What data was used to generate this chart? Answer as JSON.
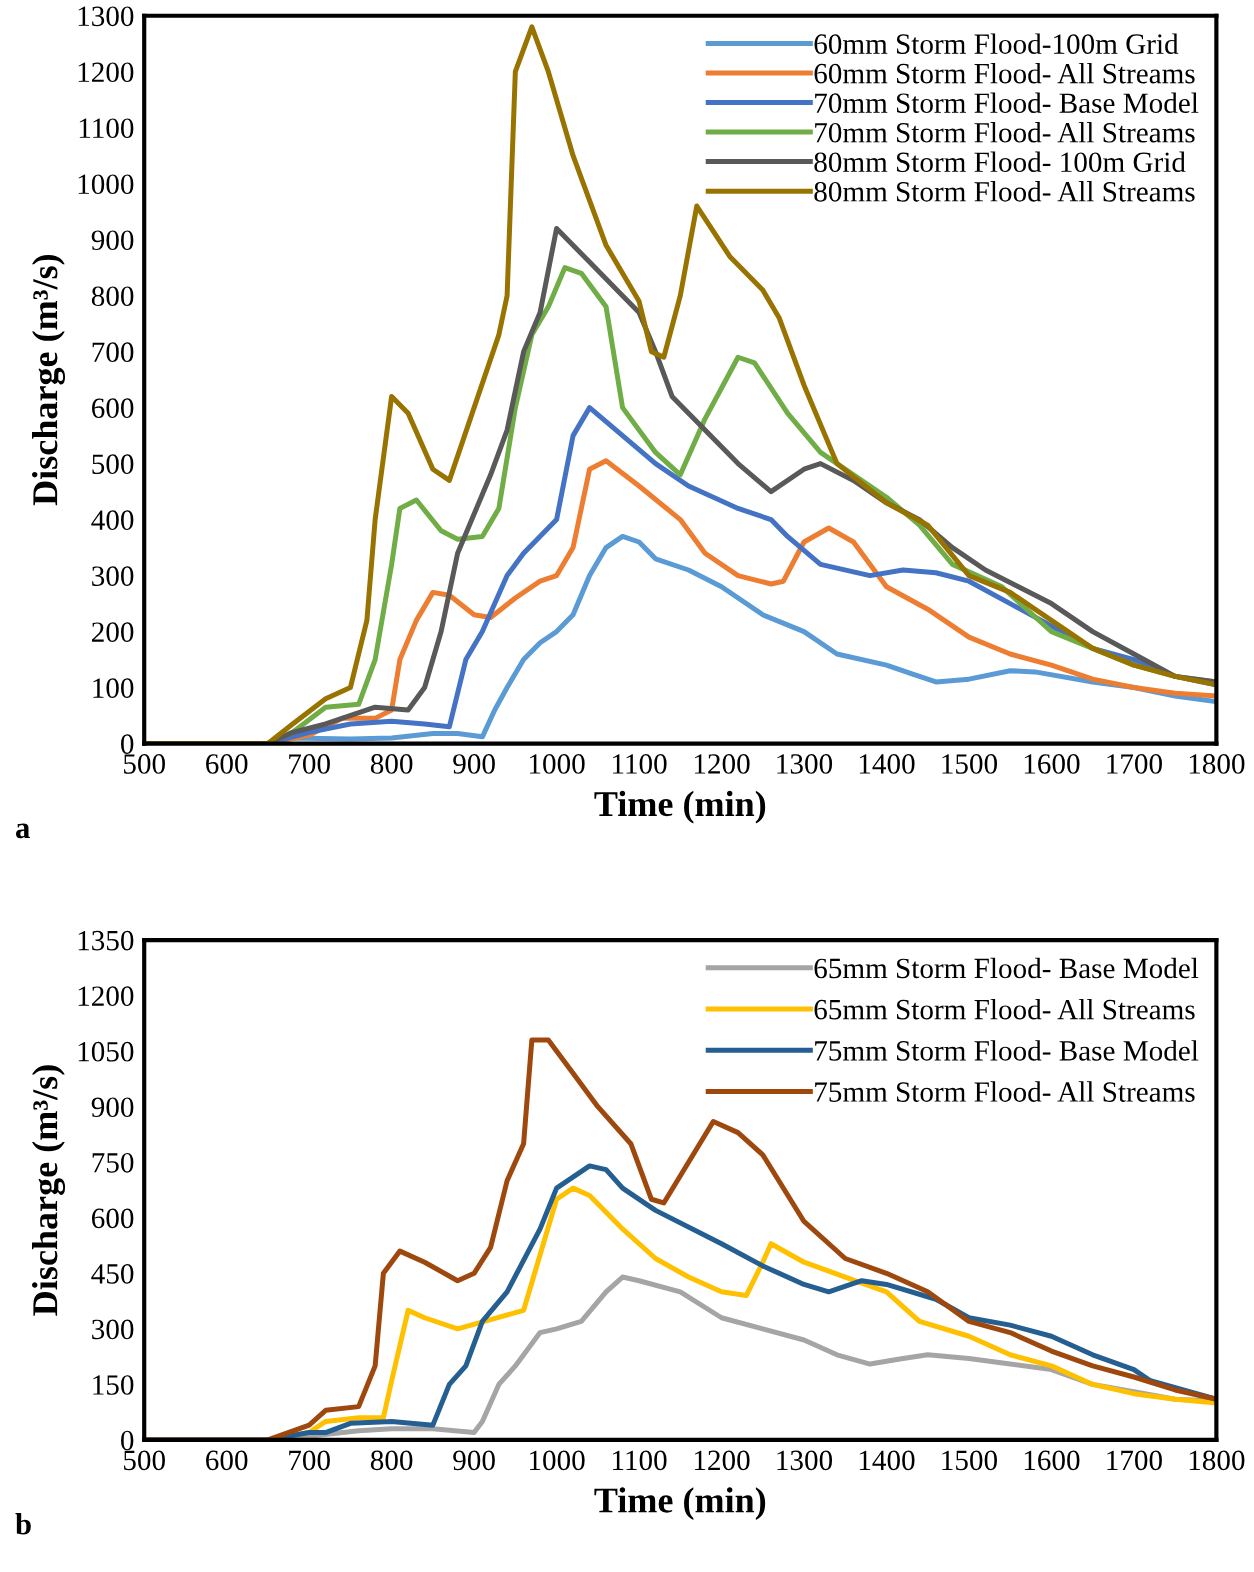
{
  "chart_data": [
    {
      "type": "line",
      "xlabel": "Time (min)",
      "ylabel": "Discharge (m³/s)",
      "xlim": [
        500,
        1800
      ],
      "xticks": [
        500,
        600,
        700,
        800,
        900,
        1000,
        1100,
        1200,
        1300,
        1400,
        1500,
        1600,
        1700,
        1800
      ],
      "ylim": [
        0,
        1300
      ],
      "yticks": [
        0,
        100,
        200,
        300,
        400,
        500,
        600,
        700,
        800,
        900,
        1000,
        1100,
        1200,
        1300
      ],
      "grid": false,
      "legend": "top right",
      "marker": "none",
      "line_style": "solid",
      "annotations": [
        "a"
      ],
      "series": [
        {
          "name": "60mm Storm Flood-100m Grid",
          "color": "#5b9bd5",
          "x": [
            500,
            650,
            680,
            750,
            800,
            850,
            880,
            910,
            925,
            940,
            960,
            980,
            1000,
            1020,
            1040,
            1060,
            1080,
            1100,
            1120,
            1160,
            1200,
            1250,
            1300,
            1340,
            1400,
            1430,
            1460,
            1500,
            1550,
            1580,
            1650,
            1700,
            1750,
            1800
          ],
          "values": [
            0,
            0,
            10,
            8,
            10,
            18,
            18,
            12,
            60,
            100,
            150,
            180,
            200,
            230,
            300,
            350,
            370,
            360,
            330,
            310,
            280,
            230,
            200,
            160,
            140,
            125,
            110,
            115,
            130,
            128,
            110,
            100,
            85,
            75
          ]
        },
        {
          "name": "60mm Storm Flood- All Streams",
          "color": "#ed7d31",
          "x": [
            500,
            650,
            700,
            740,
            780,
            800,
            810,
            830,
            850,
            870,
            900,
            920,
            950,
            980,
            1000,
            1020,
            1040,
            1060,
            1100,
            1150,
            1180,
            1220,
            1260,
            1275,
            1300,
            1330,
            1360,
            1400,
            1450,
            1500,
            1550,
            1600,
            1650,
            1700,
            1750,
            1800
          ],
          "values": [
            0,
            0,
            15,
            45,
            45,
            60,
            150,
            220,
            270,
            265,
            230,
            225,
            260,
            290,
            300,
            350,
            490,
            505,
            460,
            400,
            340,
            300,
            285,
            290,
            360,
            385,
            360,
            280,
            240,
            190,
            160,
            140,
            115,
            100,
            90,
            85
          ]
        },
        {
          "name": "70mm Storm Flood- Base Model",
          "color": "#4472c4",
          "x": [
            500,
            650,
            700,
            750,
            800,
            840,
            870,
            890,
            910,
            940,
            960,
            1000,
            1020,
            1040,
            1080,
            1120,
            1160,
            1220,
            1260,
            1280,
            1320,
            1380,
            1420,
            1460,
            1500,
            1550,
            1600,
            1650,
            1700,
            1750,
            1800
          ],
          "values": [
            0,
            0,
            20,
            35,
            40,
            35,
            30,
            150,
            200,
            300,
            340,
            400,
            550,
            600,
            550,
            500,
            460,
            420,
            400,
            370,
            320,
            300,
            310,
            305,
            290,
            250,
            210,
            170,
            150,
            120,
            105
          ]
        },
        {
          "name": "70mm Storm Flood- All Streams",
          "color": "#70ad47",
          "x": [
            500,
            650,
            680,
            720,
            760,
            780,
            800,
            810,
            830,
            860,
            880,
            910,
            930,
            950,
            970,
            990,
            1010,
            1030,
            1060,
            1080,
            1120,
            1150,
            1180,
            1220,
            1240,
            1280,
            1320,
            1400,
            1440,
            1480,
            1540,
            1600,
            1650,
            1700,
            1750,
            1800
          ],
          "values": [
            0,
            0,
            20,
            65,
            70,
            150,
            320,
            420,
            435,
            380,
            365,
            370,
            420,
            600,
            730,
            780,
            850,
            840,
            780,
            600,
            520,
            480,
            580,
            690,
            680,
            590,
            520,
            440,
            390,
            320,
            280,
            200,
            170,
            140,
            120,
            110
          ]
        },
        {
          "name": "80mm Storm Flood- 100m Grid",
          "color": "#595959",
          "x": [
            500,
            650,
            680,
            720,
            780,
            820,
            840,
            860,
            880,
            920,
            940,
            960,
            980,
            1000,
            1040,
            1080,
            1100,
            1120,
            1140,
            1180,
            1220,
            1260,
            1300,
            1320,
            1360,
            1400,
            1440,
            1480,
            1520,
            1560,
            1600,
            1650,
            1700,
            1750,
            1800
          ],
          "values": [
            0,
            0,
            20,
            35,
            65,
            60,
            100,
            200,
            340,
            480,
            560,
            700,
            770,
            920,
            860,
            800,
            770,
            700,
            620,
            560,
            500,
            450,
            490,
            500,
            470,
            430,
            400,
            350,
            310,
            280,
            250,
            200,
            160,
            120,
            110
          ]
        },
        {
          "name": "80mm Storm Flood- All Streams",
          "color": "#997300",
          "x": [
            500,
            650,
            680,
            720,
            750,
            770,
            780,
            800,
            820,
            850,
            870,
            900,
            930,
            940,
            950,
            970,
            990,
            1020,
            1060,
            1100,
            1115,
            1130,
            1150,
            1170,
            1210,
            1250,
            1270,
            1300,
            1340,
            1400,
            1450,
            1500,
            1550,
            1600,
            1650,
            1700,
            1750,
            1800
          ],
          "values": [
            0,
            0,
            35,
            80,
            100,
            220,
            400,
            620,
            590,
            490,
            470,
            600,
            730,
            800,
            1200,
            1280,
            1200,
            1050,
            890,
            790,
            700,
            690,
            800,
            960,
            870,
            810,
            760,
            640,
            500,
            430,
            390,
            300,
            270,
            220,
            170,
            140,
            120,
            105
          ]
        }
      ]
    },
    {
      "type": "line",
      "xlabel": "Time (min)",
      "ylabel": "Discharge (m³/s)",
      "xlim": [
        500,
        1800
      ],
      "xticks": [
        500,
        600,
        700,
        800,
        900,
        1000,
        1100,
        1200,
        1300,
        1400,
        1500,
        1600,
        1700,
        1800
      ],
      "ylim": [
        0,
        1350
      ],
      "yticks": [
        0,
        150,
        300,
        450,
        600,
        750,
        900,
        1050,
        1200,
        1350
      ],
      "grid": false,
      "legend": "top right",
      "marker": "none",
      "line_style": "solid",
      "annotations": [
        "b"
      ],
      "series": [
        {
          "name": "65mm Storm Flood- Base Model",
          "color": "#a5a5a5",
          "x": [
            500,
            650,
            700,
            760,
            800,
            850,
            900,
            910,
            930,
            950,
            980,
            1000,
            1030,
            1060,
            1080,
            1100,
            1150,
            1200,
            1250,
            1300,
            1340,
            1380,
            1420,
            1450,
            1500,
            1550,
            1600,
            1650,
            1700,
            1750,
            1800
          ],
          "values": [
            0,
            0,
            10,
            25,
            30,
            30,
            20,
            50,
            150,
            200,
            290,
            300,
            320,
            400,
            440,
            430,
            400,
            330,
            300,
            270,
            230,
            205,
            220,
            230,
            220,
            205,
            190,
            150,
            130,
            110,
            105
          ]
        },
        {
          "name": "65mm Storm Flood- All Streams",
          "color": "#ffc000",
          "x": [
            500,
            650,
            700,
            720,
            760,
            790,
            800,
            820,
            840,
            880,
            920,
            960,
            980,
            1000,
            1020,
            1040,
            1080,
            1120,
            1160,
            1200,
            1230,
            1250,
            1260,
            1300,
            1350,
            1400,
            1440,
            1500,
            1550,
            1600,
            1650,
            1700,
            1750,
            1800
          ],
          "values": [
            0,
            0,
            20,
            50,
            60,
            60,
            160,
            350,
            330,
            300,
            325,
            350,
            500,
            650,
            680,
            660,
            570,
            490,
            440,
            400,
            390,
            480,
            530,
            480,
            440,
            400,
            320,
            280,
            230,
            200,
            150,
            125,
            110,
            100
          ]
        },
        {
          "name": "75mm Storm Flood- Base Model",
          "color": "#255e91",
          "x": [
            500,
            650,
            700,
            720,
            750,
            800,
            850,
            870,
            890,
            910,
            940,
            980,
            1000,
            1040,
            1060,
            1080,
            1120,
            1200,
            1250,
            1300,
            1330,
            1370,
            1400,
            1460,
            1500,
            1550,
            1600,
            1650,
            1700,
            1720,
            1800
          ],
          "values": [
            0,
            0,
            20,
            20,
            45,
            50,
            40,
            150,
            200,
            320,
            400,
            570,
            680,
            740,
            730,
            680,
            620,
            530,
            470,
            420,
            400,
            430,
            420,
            380,
            330,
            310,
            280,
            230,
            190,
            160,
            110
          ]
        },
        {
          "name": "75mm Storm Flood- All Streams",
          "color": "#9e480e",
          "x": [
            500,
            650,
            700,
            720,
            760,
            780,
            790,
            810,
            840,
            880,
            900,
            920,
            940,
            960,
            970,
            990,
            1020,
            1050,
            1090,
            1115,
            1130,
            1160,
            1190,
            1220,
            1250,
            1300,
            1350,
            1400,
            1450,
            1500,
            1550,
            1600,
            1650,
            1700,
            1750,
            1800
          ],
          "values": [
            0,
            0,
            40,
            80,
            90,
            200,
            450,
            510,
            480,
            430,
            450,
            520,
            700,
            800,
            1080,
            1080,
            990,
            900,
            800,
            650,
            640,
            750,
            860,
            830,
            770,
            590,
            490,
            450,
            400,
            320,
            290,
            240,
            200,
            170,
            135,
            110
          ]
        }
      ]
    }
  ]
}
